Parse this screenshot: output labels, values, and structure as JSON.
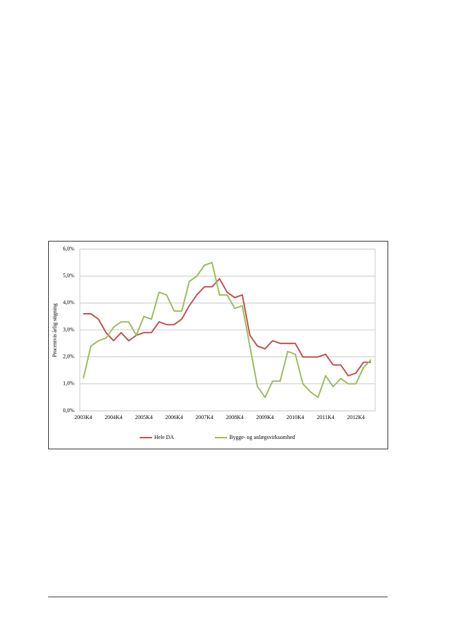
{
  "chart_data": {
    "type": "line",
    "ylabel": "Procentvis årlig stigning",
    "categories": [
      "2003K4",
      null,
      null,
      null,
      "2004K4",
      null,
      null,
      null,
      "2005K4",
      null,
      null,
      null,
      "2006K4",
      null,
      null,
      null,
      "2007K4",
      null,
      null,
      null,
      "2008K4",
      null,
      null,
      null,
      "2009K4",
      null,
      null,
      null,
      "2010K4",
      null,
      null,
      null,
      "2011K4",
      null,
      null,
      null,
      "2012K4",
      null,
      null
    ],
    "series": [
      {
        "name": "Hele DA",
        "color": "#c0504d",
        "values": [
          3.6,
          3.6,
          3.4,
          2.9,
          2.6,
          2.9,
          2.6,
          2.8,
          2.9,
          2.9,
          3.3,
          3.2,
          3.2,
          3.4,
          3.9,
          4.3,
          4.6,
          4.6,
          4.9,
          4.4,
          4.2,
          4.3,
          2.8,
          2.4,
          2.3,
          2.6,
          2.5,
          2.5,
          2.5,
          2.0,
          2.0,
          2.0,
          2.1,
          1.7,
          1.7,
          1.3,
          1.4,
          1.8,
          1.8
        ]
      },
      {
        "name": "Bygge- og anlægsvirksomhed",
        "color": "#9bbb59",
        "values": [
          1.2,
          2.4,
          2.6,
          2.7,
          3.1,
          3.3,
          3.3,
          2.8,
          3.5,
          3.4,
          4.4,
          4.3,
          3.7,
          3.7,
          4.8,
          5.0,
          5.4,
          5.5,
          4.3,
          4.3,
          3.8,
          3.9,
          2.4,
          0.9,
          0.5,
          1.1,
          1.1,
          2.2,
          2.1,
          1.0,
          0.7,
          0.5,
          1.3,
          0.9,
          1.2,
          1.0,
          1.0,
          1.6,
          1.9
        ]
      }
    ],
    "ylim": [
      0,
      6
    ],
    "yticks": [
      {
        "value": 0,
        "label": "0,0%"
      },
      {
        "value": 1,
        "label": "1,0%"
      },
      {
        "value": 2,
        "label": "2,0%"
      },
      {
        "value": 3,
        "label": "3,0%"
      },
      {
        "value": 4,
        "label": "4,0%"
      },
      {
        "value": 5,
        "label": "5,0%"
      },
      {
        "value": 6,
        "label": "6,0%"
      }
    ],
    "grid": true,
    "legend": "bottom"
  }
}
